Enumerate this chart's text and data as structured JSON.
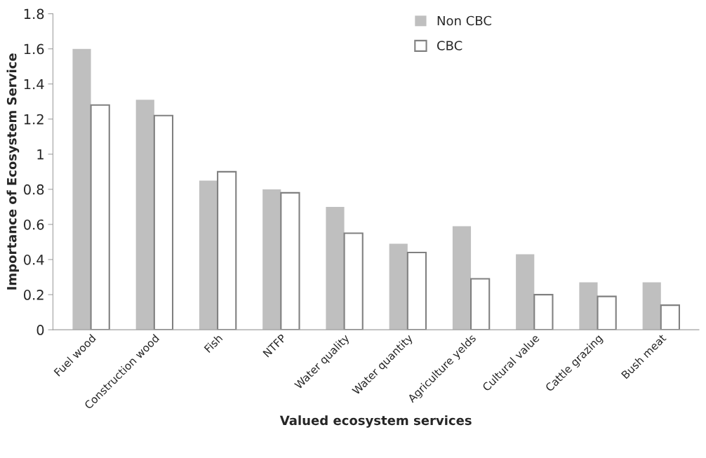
{
  "chart_data": {
    "type": "bar",
    "xlabel": "Valued ecosystem services",
    "ylabel": "Importance of Ecosystem Service",
    "categories": [
      "Fuel wood",
      "Construction wood",
      "Fish",
      "NTFP",
      "Water quality",
      "Water quantity",
      "Agriculture yelds",
      "Cultural value",
      "Cattle grazing",
      "Bush meat"
    ],
    "series": [
      {
        "name": "Non CBC",
        "color": "#bfbfbf",
        "values": [
          1.6,
          1.31,
          0.85,
          0.8,
          0.7,
          0.49,
          0.59,
          0.43,
          0.27,
          0.27
        ]
      },
      {
        "name": "CBC",
        "color": "#ffffff",
        "values": [
          1.28,
          1.22,
          0.9,
          0.78,
          0.55,
          0.44,
          0.29,
          0.2,
          0.19,
          0.14
        ]
      }
    ],
    "ylim": [
      0,
      1.8
    ],
    "yticks": [
      0,
      {
        "value": 0.2,
        "label": "0.2"
      },
      {
        "value": 0.4,
        "label": "0.4"
      },
      {
        "value": 0.6,
        "label": "0.6"
      },
      {
        "value": 0.8,
        "label": "0.8"
      },
      1,
      {
        "value": 1.2,
        "label": "1.2"
      },
      {
        "value": 1.4,
        "label": "1.4"
      },
      {
        "value": 1.6,
        "label": "1.6"
      },
      {
        "value": 1.8,
        "label": "1.8"
      }
    ],
    "grid": false,
    "legend": "top"
  }
}
